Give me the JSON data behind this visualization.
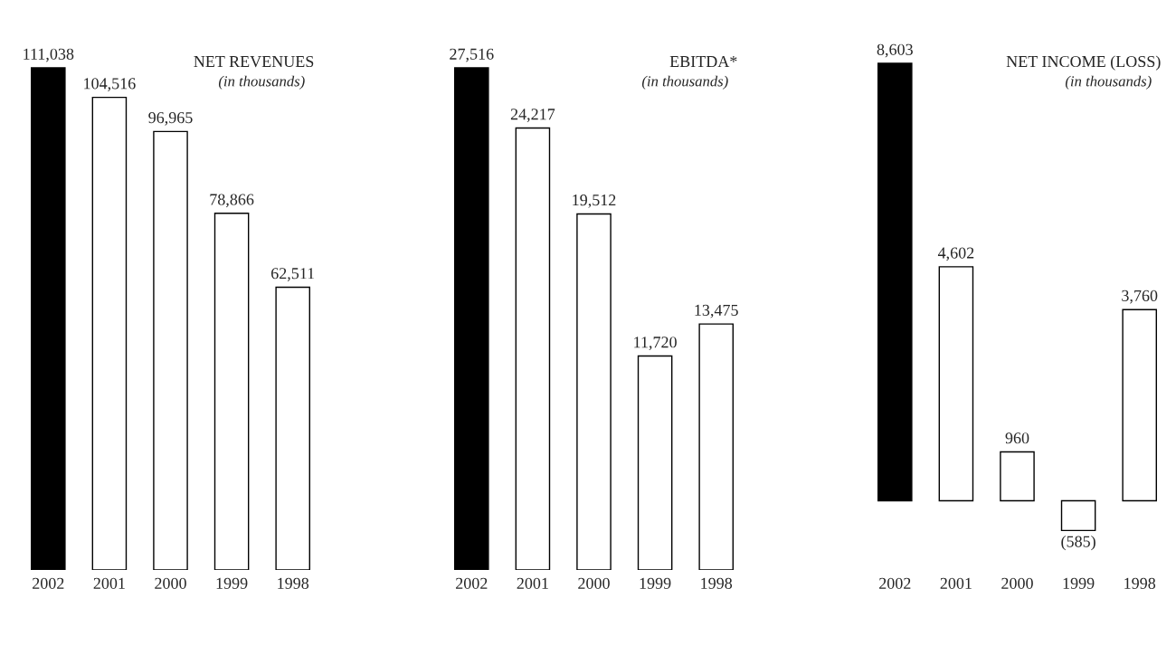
{
  "chart_data": [
    {
      "type": "bar",
      "title": "NET REVENUES",
      "subtitle": "(in thousands)",
      "categories": [
        "2002",
        "2001",
        "2000",
        "1999",
        "1998"
      ],
      "values": [
        111038,
        104516,
        96965,
        78866,
        62511
      ],
      "value_labels": [
        "111,038",
        "104,516",
        "96,965",
        "78,866",
        "62,511"
      ],
      "colors": [
        "#000000",
        "#ffffff",
        "#ffffff",
        "#ffffff",
        "#ffffff"
      ]
    },
    {
      "type": "bar",
      "title": "EBITDA*",
      "subtitle": "(in thousands)",
      "categories": [
        "2002",
        "2001",
        "2000",
        "1999",
        "1998"
      ],
      "values": [
        27516,
        24217,
        19512,
        11720,
        13475
      ],
      "value_labels": [
        "27,516",
        "24,217",
        "19,512",
        "11,720",
        "13,475"
      ],
      "colors": [
        "#000000",
        "#ffffff",
        "#ffffff",
        "#ffffff",
        "#ffffff"
      ]
    },
    {
      "type": "bar",
      "title": "NET INCOME (LOSS)",
      "subtitle": "(in thousands)",
      "categories": [
        "2002",
        "2001",
        "2000",
        "1999",
        "1998"
      ],
      "values": [
        8603,
        4602,
        960,
        -585,
        3760
      ],
      "value_labels": [
        "8,603",
        "4,602",
        "960",
        "(585)",
        "3,760"
      ],
      "colors": [
        "#000000",
        "#ffffff",
        "#ffffff",
        "#ffffff",
        "#ffffff"
      ]
    }
  ]
}
